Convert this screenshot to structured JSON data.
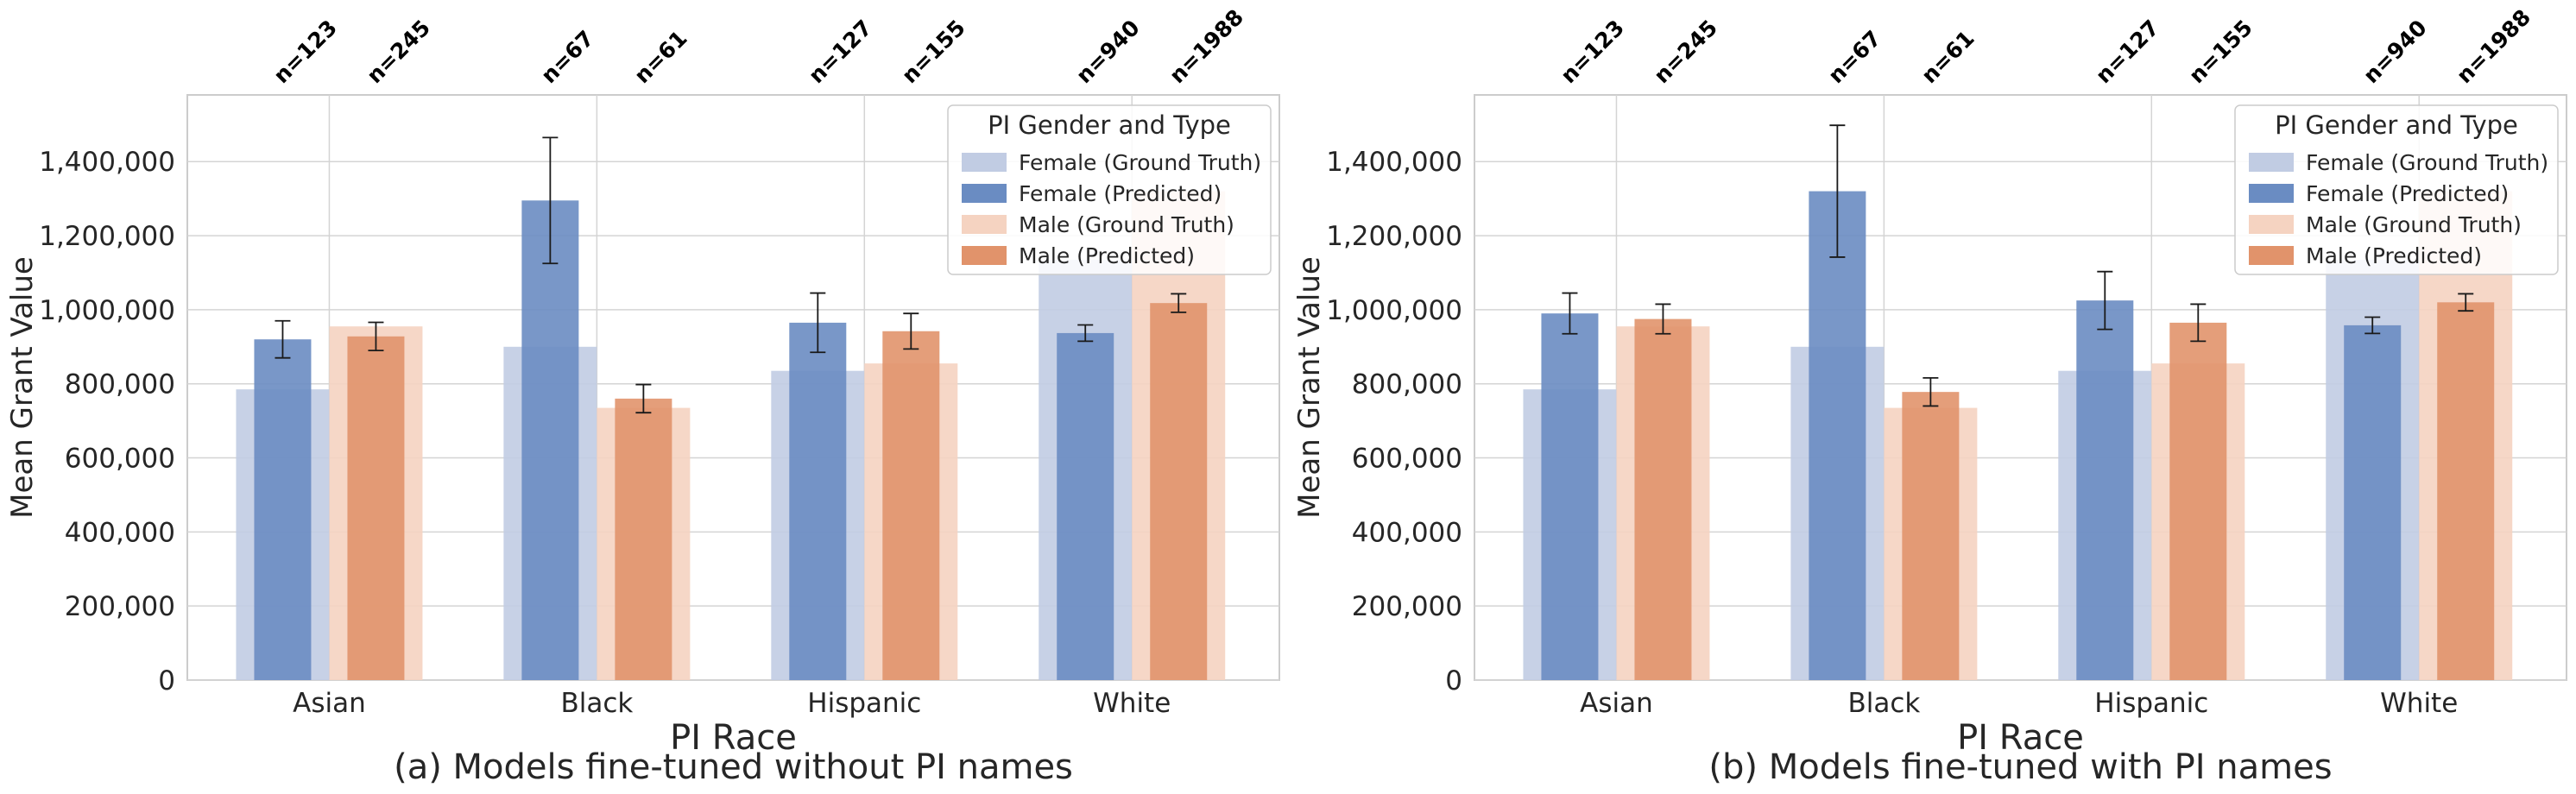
{
  "colors": {
    "female_gt": "#c1cce3",
    "female_pred": "#6a8cc2",
    "male_gt": "#f5d3c1",
    "male_pred": "#e1936b",
    "grid": "#d4d4d4",
    "frame": "#cccccc",
    "text": "#262626",
    "errorbar": "#1a1a1a"
  },
  "chart_data": [
    {
      "type": "bar",
      "caption": "(a) Models fine-tuned without PI names",
      "xlabel": "PI Race",
      "ylabel": "Mean Grant Value",
      "ylim": [
        0,
        1580000
      ],
      "yticks": [
        0,
        200000,
        400000,
        600000,
        800000,
        1000000,
        1200000,
        1400000
      ],
      "ytick_labels": [
        "0",
        "200,000",
        "400,000",
        "600,000",
        "800,000",
        "1,000,000",
        "1,200,000",
        "1,400,000"
      ],
      "grid": true,
      "categories": [
        "Asian",
        "Black",
        "Hispanic",
        "White"
      ],
      "sample_sizes": {
        "Female": [
          "n=123",
          "n=67",
          "n=127",
          "n=940"
        ],
        "Male": [
          "n=245",
          "n=61",
          "n=155",
          "n=1988"
        ]
      },
      "legend": {
        "title": "PI Gender and Type",
        "position": "top-right",
        "entries": [
          "Female (Ground Truth)",
          "Female (Predicted)",
          "Male (Ground Truth)",
          "Male (Predicted)"
        ]
      },
      "series": [
        {
          "name": "Female (Ground Truth)",
          "values": [
            785000,
            900000,
            835000,
            1135000
          ]
        },
        {
          "name": "Female (Predicted)",
          "values": [
            920000,
            1295000,
            965000,
            937000
          ],
          "err": [
            50000,
            170000,
            80000,
            22000
          ]
        },
        {
          "name": "Male (Ground Truth)",
          "values": [
            955000,
            735000,
            855000,
            1320000
          ]
        },
        {
          "name": "Male (Predicted)",
          "values": [
            928000,
            760000,
            942000,
            1018000
          ],
          "err": [
            38000,
            38000,
            48000,
            25000
          ]
        }
      ]
    },
    {
      "type": "bar",
      "caption": "(b) Models fine-tuned with PI names",
      "xlabel": "PI Race",
      "ylabel": "Mean Grant Value",
      "ylim": [
        0,
        1580000
      ],
      "yticks": [
        0,
        200000,
        400000,
        600000,
        800000,
        1000000,
        1200000,
        1400000
      ],
      "ytick_labels": [
        "0",
        "200,000",
        "400,000",
        "600,000",
        "800,000",
        "1,000,000",
        "1,200,000",
        "1,400,000"
      ],
      "grid": true,
      "categories": [
        "Asian",
        "Black",
        "Hispanic",
        "White"
      ],
      "sample_sizes": {
        "Female": [
          "n=123",
          "n=67",
          "n=127",
          "n=940"
        ],
        "Male": [
          "n=245",
          "n=61",
          "n=155",
          "n=1988"
        ]
      },
      "legend": {
        "title": "PI Gender and Type",
        "position": "top-right",
        "entries": [
          "Female (Ground Truth)",
          "Female (Predicted)",
          "Male (Ground Truth)",
          "Male (Predicted)"
        ]
      },
      "series": [
        {
          "name": "Female (Ground Truth)",
          "values": [
            785000,
            900000,
            835000,
            1135000
          ]
        },
        {
          "name": "Female (Predicted)",
          "values": [
            990000,
            1320000,
            1025000,
            958000
          ],
          "err": [
            55000,
            178000,
            78000,
            22000
          ]
        },
        {
          "name": "Male (Ground Truth)",
          "values": [
            955000,
            735000,
            855000,
            1320000
          ]
        },
        {
          "name": "Male (Predicted)",
          "values": [
            975000,
            778000,
            965000,
            1020000
          ],
          "err": [
            40000,
            38000,
            50000,
            23000
          ]
        }
      ]
    }
  ]
}
